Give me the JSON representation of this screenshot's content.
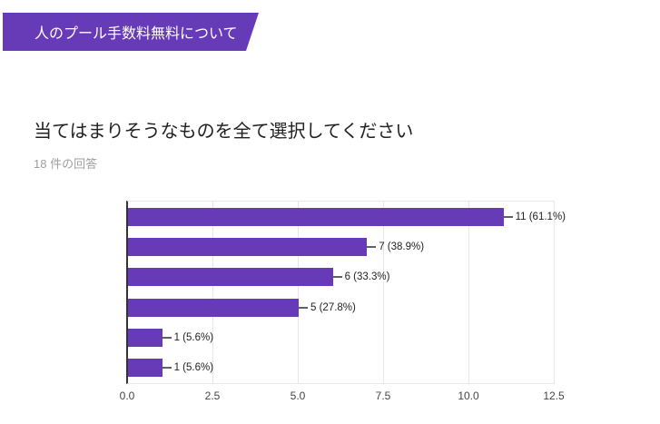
{
  "header": {
    "banner_label": "人のプール手数料無料について"
  },
  "question": {
    "title": "当てはまりそうなものを全て選択してください",
    "response_count": "18 件の回答"
  },
  "colors": {
    "accent": "#673ab7",
    "bar": "#673ab7",
    "title_text": "#212121",
    "subtitle_text": "#9e9e9e",
    "gridline": "#e6e6e6",
    "axis_line": "#333333",
    "tick_text": "#444444",
    "connector": "#616161"
  },
  "chart_data": {
    "type": "bar",
    "orientation": "horizontal",
    "values": [
      11,
      7,
      6,
      5,
      1,
      1
    ],
    "bar_labels": [
      "11 (61.1%)",
      "7 (38.9%)",
      "6 (33.3%)",
      "5 (27.8%)",
      "1 (5.6%)",
      "1 (5.6%)"
    ],
    "x_ticks": [
      "0.0",
      "2.5",
      "5.0",
      "7.5",
      "10.0",
      "12.5"
    ],
    "xlim": [
      0,
      12.5
    ],
    "grid": true,
    "legend": "none",
    "total_responses": 18
  }
}
